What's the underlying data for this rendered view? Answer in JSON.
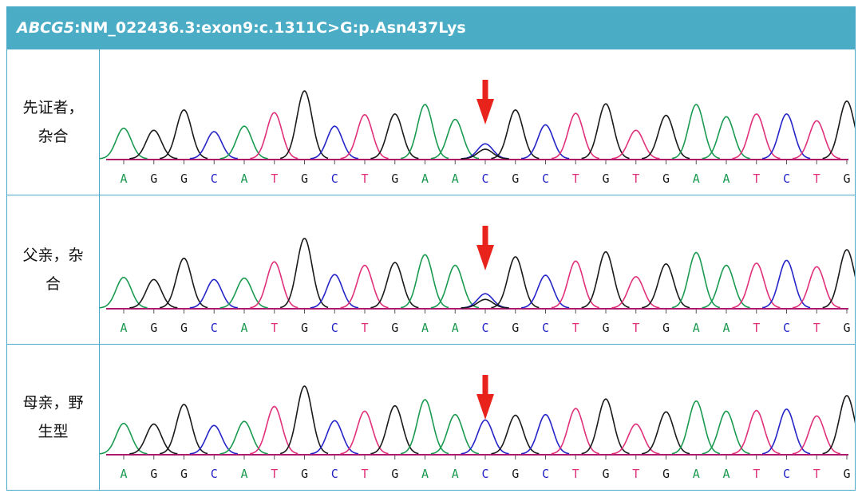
{
  "header": {
    "gene": "ABCG5",
    "variant": ":NM_022436.3:exon9:c.1311C>G:p.Asn437Lys"
  },
  "colors": {
    "header_bg": "#4bacc6",
    "border": "#4aa9c8",
    "A": "#1a9a50",
    "G": "#1a1a1a",
    "C": "#2424c8",
    "T": "#e0307a",
    "baseline": "#b0186e",
    "arrow": "#e8231c"
  },
  "bases": [
    "A",
    "G",
    "G",
    "C",
    "A",
    "T",
    "G",
    "C",
    "T",
    "G",
    "A",
    "A",
    "C",
    "G",
    "C",
    "T",
    "G",
    "T",
    "G",
    "A",
    "A",
    "T",
    "C",
    "T",
    "G"
  ],
  "variant_index": 12,
  "rows": [
    {
      "label": "先证者，杂合",
      "peak_heights": [
        0.45,
        0.42,
        0.72,
        0.4,
        0.48,
        0.68,
        1.0,
        0.48,
        0.65,
        0.66,
        0.8,
        0.58,
        0.22,
        0.72,
        0.5,
        0.67,
        0.81,
        0.42,
        0.64,
        0.8,
        0.62,
        0.66,
        0.66,
        0.56,
        0.85
      ],
      "secondary_g": 0.14
    },
    {
      "label": "父亲，杂合",
      "peak_heights": [
        0.43,
        0.4,
        0.7,
        0.4,
        0.42,
        0.65,
        0.98,
        0.47,
        0.6,
        0.64,
        0.75,
        0.6,
        0.2,
        0.72,
        0.46,
        0.66,
        0.79,
        0.44,
        0.62,
        0.78,
        0.6,
        0.63,
        0.67,
        0.58,
        0.82
      ],
      "secondary_g": 0.12
    },
    {
      "label": "母亲，野生型",
      "peak_heights": [
        0.45,
        0.44,
        0.73,
        0.42,
        0.48,
        0.7,
        1.0,
        0.49,
        0.63,
        0.71,
        0.8,
        0.58,
        0.5,
        0.57,
        0.58,
        0.67,
        0.81,
        0.44,
        0.62,
        0.78,
        0.63,
        0.64,
        0.66,
        0.56,
        0.86
      ],
      "secondary_g": 0
    }
  ]
}
